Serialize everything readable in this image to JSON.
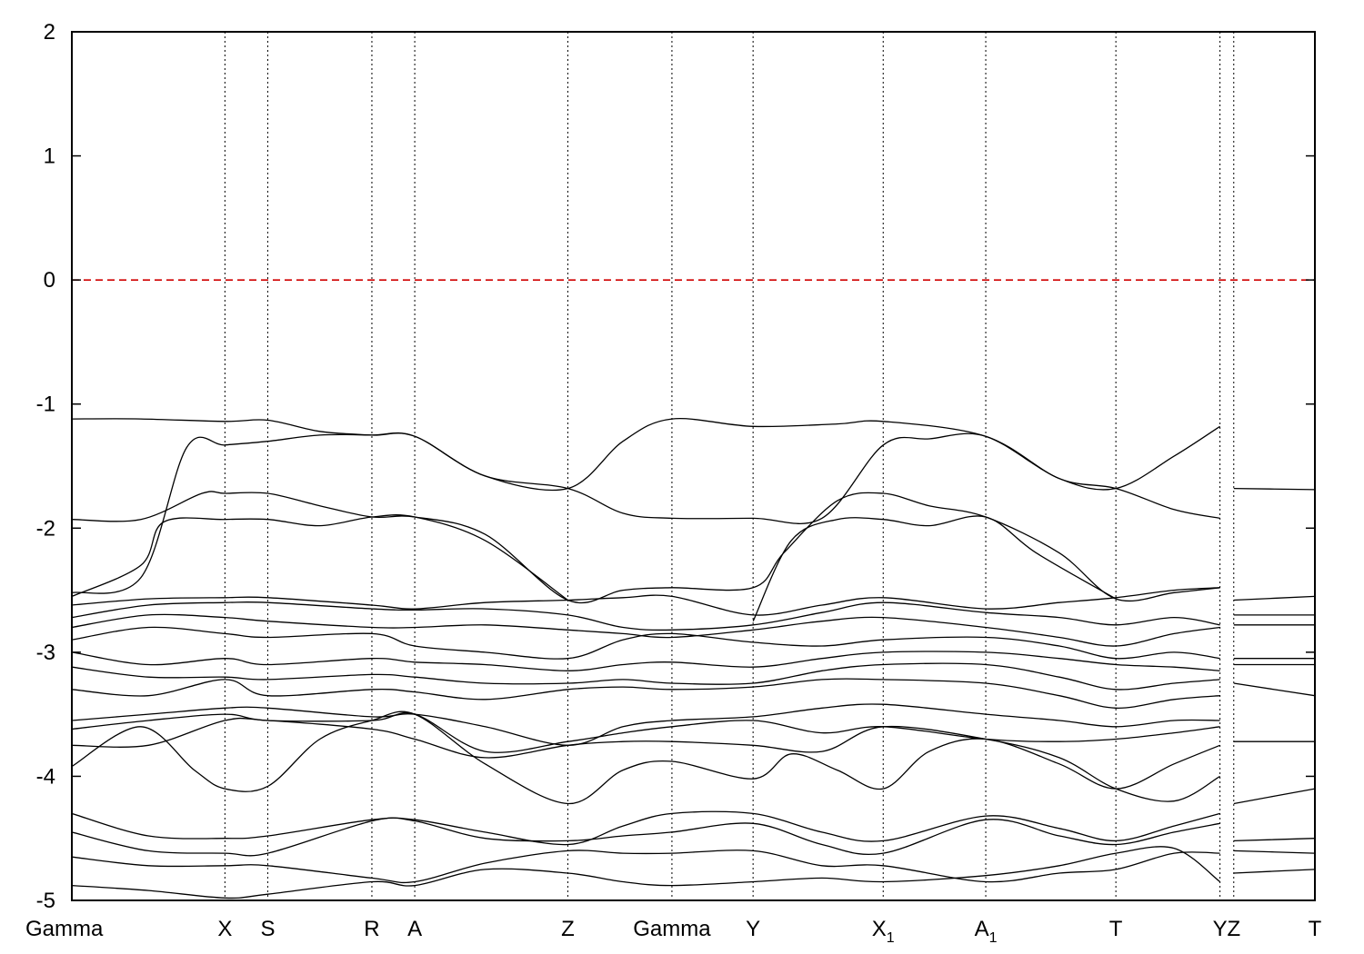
{
  "chart_data": {
    "type": "line",
    "title": "",
    "xlabel": "",
    "ylabel": "",
    "ylim": [
      -5,
      2
    ],
    "yticks": [
      2,
      1,
      0,
      -1,
      -2,
      -3,
      -4,
      -5
    ],
    "ytick_labels": [
      "2",
      "1",
      "0",
      "-1",
      "-2",
      "-3",
      "-4",
      "-5"
    ],
    "grid": false,
    "reference_line": {
      "y": 0,
      "color": "#d00000",
      "style": "dashed"
    },
    "kpath": [
      {
        "label": "Gamma",
        "sub": "",
        "x": 0.0
      },
      {
        "label": "X",
        "sub": "",
        "x": 1.0
      },
      {
        "label": "S",
        "sub": "",
        "x": 1.28
      },
      {
        "label": "R",
        "sub": "",
        "x": 1.96
      },
      {
        "label": "A",
        "sub": "",
        "x": 2.24
      },
      {
        "label": "Z",
        "sub": "",
        "x": 3.24
      },
      {
        "label": "Gamma",
        "sub": "",
        "x": 3.92
      },
      {
        "label": "Y",
        "sub": "",
        "x": 4.45
      },
      {
        "label": "X",
        "sub": "1",
        "x": 5.3
      },
      {
        "label": "A",
        "sub": "1",
        "x": 5.97
      },
      {
        "label": "T",
        "sub": "",
        "x": 6.82
      },
      {
        "label": "Y",
        "sub": "",
        "x": 7.5
      },
      {
        "label": "Z",
        "sub": "",
        "x": 7.59
      },
      {
        "label": "T",
        "sub": "",
        "x": 8.12
      }
    ],
    "xlim": [
      0,
      8.12
    ],
    "series_color": "#000000",
    "series": [
      {
        "x": [
          0,
          0.45,
          1.0,
          1.28,
          1.62,
          1.96,
          2.24,
          2.7,
          3.24,
          3.6,
          3.92,
          4.45,
          5.0,
          5.3,
          5.97,
          6.45,
          6.82,
          7.2,
          7.5
        ],
        "y": [
          -1.12,
          -1.12,
          -1.14,
          -1.13,
          -1.22,
          -1.25,
          -1.26,
          -1.58,
          -1.68,
          -1.3,
          -1.12,
          -1.18,
          -1.16,
          -1.14,
          -1.26,
          -1.6,
          -1.68,
          -1.42,
          -1.18
        ]
      },
      {
        "x": [
          0,
          0.45,
          0.75,
          1.0,
          1.28,
          1.62,
          1.96,
          2.24,
          2.7,
          3.24,
          3.6,
          3.92,
          4.45,
          4.9,
          5.3,
          5.6,
          5.97,
          6.45,
          6.82,
          7.2,
          7.5
        ],
        "y": [
          -2.52,
          -2.4,
          -1.35,
          -1.33,
          -1.3,
          -1.25,
          -1.25,
          -1.26,
          -1.58,
          -1.68,
          -1.88,
          -1.92,
          -1.92,
          -1.92,
          -1.33,
          -1.28,
          -1.26,
          -1.6,
          -1.68,
          -1.85,
          -1.92
        ]
      },
      {
        "x": [
          0,
          0.45,
          0.85,
          1.0,
          1.28,
          1.62,
          1.96,
          2.24,
          2.7,
          3.24,
          3.6,
          3.92,
          4.45,
          4.65,
          5.0,
          5.3,
          5.6,
          5.97,
          6.45,
          6.82,
          7.2,
          7.5
        ],
        "y": [
          -1.93,
          -1.93,
          -1.72,
          -1.72,
          -1.72,
          -1.82,
          -1.91,
          -1.91,
          -2.05,
          -2.58,
          -2.5,
          -2.48,
          -2.48,
          -2.2,
          -1.78,
          -1.72,
          -1.82,
          -1.91,
          -2.2,
          -2.57,
          -2.52,
          -2.48
        ]
      },
      {
        "x": [
          0,
          0.45,
          0.6,
          1.0,
          1.28,
          1.62,
          1.96,
          2.24,
          2.7,
          3.24
        ],
        "y": [
          -2.55,
          -2.3,
          -1.95,
          -1.93,
          -1.93,
          -1.98,
          -1.91,
          -1.91,
          -2.1,
          -2.58
        ]
      },
      {
        "x": [
          4.45,
          4.7,
          5.0,
          5.3,
          5.6,
          5.97,
          6.3,
          6.82
        ],
        "y": [
          -2.75,
          -2.1,
          -1.93,
          -1.93,
          -1.98,
          -1.91,
          -2.2,
          -2.57
        ]
      },
      {
        "x": [
          0,
          0.5,
          1.0,
          1.28,
          1.96,
          2.24,
          2.7,
          3.24,
          3.6,
          3.92,
          4.45,
          4.9,
          5.3,
          5.97,
          6.45,
          6.82,
          7.2,
          7.5
        ],
        "y": [
          -2.62,
          -2.57,
          -2.56,
          -2.56,
          -2.62,
          -2.65,
          -2.6,
          -2.58,
          -2.56,
          -2.55,
          -2.7,
          -2.62,
          -2.56,
          -2.65,
          -2.6,
          -2.56,
          -2.5,
          -2.48
        ]
      },
      {
        "x": [
          0,
          0.5,
          1.0,
          1.28,
          1.96,
          2.24,
          2.7,
          3.24,
          3.6,
          3.92,
          4.45,
          4.9,
          5.3,
          5.97,
          6.45,
          6.82,
          7.2,
          7.5
        ],
        "y": [
          -2.72,
          -2.62,
          -2.6,
          -2.6,
          -2.65,
          -2.66,
          -2.65,
          -2.7,
          -2.8,
          -2.82,
          -2.78,
          -2.68,
          -2.6,
          -2.68,
          -2.72,
          -2.78,
          -2.72,
          -2.78
        ]
      },
      {
        "x": [
          0,
          0.5,
          1.0,
          1.28,
          1.96,
          2.24,
          2.7,
          3.24,
          3.6,
          3.92,
          4.45,
          4.9,
          5.3,
          5.97,
          6.45,
          6.82,
          7.2,
          7.5
        ],
        "y": [
          -2.8,
          -2.7,
          -2.72,
          -2.75,
          -2.8,
          -2.8,
          -2.78,
          -2.82,
          -2.85,
          -2.88,
          -2.82,
          -2.75,
          -2.72,
          -2.8,
          -2.88,
          -2.95,
          -2.85,
          -2.8
        ]
      },
      {
        "x": [
          0,
          0.5,
          1.0,
          1.28,
          1.96,
          2.24,
          2.7,
          3.24,
          3.6,
          3.92,
          4.45,
          4.9,
          5.3,
          5.97,
          6.45,
          6.82,
          7.2,
          7.5
        ],
        "y": [
          -2.9,
          -2.8,
          -2.85,
          -2.88,
          -2.85,
          -2.95,
          -3.0,
          -3.05,
          -2.9,
          -2.85,
          -2.92,
          -2.95,
          -2.9,
          -2.88,
          -2.95,
          -3.05,
          -3.0,
          -3.05
        ]
      },
      {
        "x": [
          0,
          0.5,
          1.0,
          1.28,
          1.96,
          2.24,
          2.7,
          3.24,
          3.6,
          3.92,
          4.45,
          4.9,
          5.3,
          5.97,
          6.45,
          6.82,
          7.2,
          7.5
        ],
        "y": [
          -3.0,
          -3.1,
          -3.05,
          -3.1,
          -3.05,
          -3.08,
          -3.1,
          -3.15,
          -3.1,
          -3.08,
          -3.12,
          -3.05,
          -3.0,
          -3.0,
          -3.05,
          -3.1,
          -3.12,
          -3.15
        ]
      },
      {
        "x": [
          0,
          0.5,
          1.0,
          1.28,
          1.96,
          2.24,
          2.7,
          3.24,
          3.6,
          3.92,
          4.45,
          4.9,
          5.3,
          5.97,
          6.45,
          6.82,
          7.2,
          7.5
        ],
        "y": [
          -3.12,
          -3.2,
          -3.2,
          -3.22,
          -3.18,
          -3.2,
          -3.25,
          -3.25,
          -3.22,
          -3.25,
          -3.25,
          -3.15,
          -3.1,
          -3.1,
          -3.2,
          -3.3,
          -3.25,
          -3.22
        ]
      },
      {
        "x": [
          0,
          0.5,
          1.0,
          1.28,
          1.96,
          2.24,
          2.7,
          3.24,
          3.6,
          3.92,
          4.45,
          4.9,
          5.3,
          5.97,
          6.45,
          6.82,
          7.2,
          7.5
        ],
        "y": [
          -3.3,
          -3.35,
          -3.22,
          -3.35,
          -3.3,
          -3.32,
          -3.38,
          -3.3,
          -3.28,
          -3.3,
          -3.28,
          -3.22,
          -3.22,
          -3.25,
          -3.35,
          -3.45,
          -3.38,
          -3.35
        ]
      },
      {
        "x": [
          0,
          0.5,
          1.0,
          1.28,
          1.96,
          2.24,
          2.7,
          3.24,
          3.6,
          3.92,
          4.45,
          4.9,
          5.3,
          5.97,
          6.45,
          6.82,
          7.2,
          7.5
        ],
        "y": [
          -3.55,
          -3.5,
          -3.45,
          -3.45,
          -3.52,
          -3.5,
          -3.6,
          -3.75,
          -3.6,
          -3.55,
          -3.52,
          -3.45,
          -3.42,
          -3.5,
          -3.55,
          -3.6,
          -3.55,
          -3.55
        ]
      },
      {
        "x": [
          0,
          0.5,
          1.0,
          1.28,
          1.96,
          2.24,
          2.7,
          3.24,
          3.6,
          3.92,
          4.45,
          4.9,
          5.3,
          5.97,
          6.45,
          6.82,
          7.2,
          7.5
        ],
        "y": [
          -3.62,
          -3.55,
          -3.5,
          -3.55,
          -3.55,
          -3.5,
          -3.8,
          -3.72,
          -3.65,
          -3.6,
          -3.55,
          -3.65,
          -3.6,
          -3.7,
          -3.72,
          -3.7,
          -3.65,
          -3.6
        ]
      },
      {
        "x": [
          0,
          0.5,
          1.0,
          1.28,
          1.96,
          2.24,
          2.7,
          3.24,
          3.6,
          3.92,
          4.45,
          4.9,
          5.3,
          5.97,
          6.45,
          6.82,
          7.2,
          7.5
        ],
        "y": [
          -3.75,
          -3.75,
          -3.55,
          -3.55,
          -3.62,
          -3.7,
          -3.85,
          -3.75,
          -3.72,
          -3.72,
          -3.75,
          -3.8,
          -3.6,
          -3.7,
          -3.85,
          -4.1,
          -4.2,
          -4.0
        ]
      },
      {
        "x": [
          0,
          0.45,
          0.8,
          1.0,
          1.28,
          1.62,
          1.96,
          2.24,
          2.7,
          3.24,
          3.6,
          3.92,
          4.45,
          4.7,
          5.0,
          5.3,
          5.6,
          5.97,
          6.45,
          6.82,
          7.2,
          7.5
        ],
        "y": [
          -3.92,
          -3.6,
          -3.95,
          -4.1,
          -4.08,
          -3.7,
          -3.55,
          -3.5,
          -3.9,
          -4.22,
          -3.95,
          -3.88,
          -4.02,
          -3.82,
          -3.95,
          -4.1,
          -3.8,
          -3.7,
          -3.9,
          -4.1,
          -3.9,
          -3.75
        ]
      },
      {
        "x": [
          0,
          0.5,
          1.0,
          1.28,
          1.96,
          2.24,
          2.7,
          3.24,
          3.6,
          3.92,
          4.45,
          4.9,
          5.3,
          5.97,
          6.45,
          6.82,
          7.2,
          7.5
        ],
        "y": [
          -4.3,
          -4.48,
          -4.5,
          -4.48,
          -4.35,
          -4.35,
          -4.45,
          -4.55,
          -4.4,
          -4.3,
          -4.3,
          -4.45,
          -4.52,
          -4.32,
          -4.42,
          -4.52,
          -4.4,
          -4.3
        ]
      },
      {
        "x": [
          0,
          0.5,
          1.0,
          1.28,
          1.96,
          2.24,
          2.7,
          3.24,
          3.6,
          3.92,
          4.45,
          4.9,
          5.3,
          5.97,
          6.45,
          6.82,
          7.2,
          7.5
        ],
        "y": [
          -4.45,
          -4.6,
          -4.62,
          -4.62,
          -4.36,
          -4.36,
          -4.5,
          -4.52,
          -4.48,
          -4.45,
          -4.38,
          -4.55,
          -4.62,
          -4.35,
          -4.48,
          -4.55,
          -4.45,
          -4.38
        ]
      },
      {
        "x": [
          0,
          0.5,
          1.0,
          1.28,
          1.96,
          2.24,
          2.7,
          3.24,
          3.6,
          3.92,
          4.45,
          4.9,
          5.3,
          5.97,
          6.45,
          6.82,
          7.2,
          7.5
        ],
        "y": [
          -4.65,
          -4.72,
          -4.72,
          -4.72,
          -4.82,
          -4.85,
          -4.7,
          -4.6,
          -4.62,
          -4.62,
          -4.6,
          -4.72,
          -4.72,
          -4.85,
          -4.78,
          -4.75,
          -4.62,
          -4.62
        ]
      },
      {
        "x": [
          0,
          0.5,
          1.0,
          1.28,
          1.96,
          2.24,
          2.7,
          3.24,
          3.6,
          3.92,
          4.45,
          4.9,
          5.3,
          5.97,
          6.45,
          6.82,
          7.2,
          7.5
        ],
        "y": [
          -4.88,
          -4.92,
          -4.98,
          -4.95,
          -4.85,
          -4.88,
          -4.75,
          -4.78,
          -4.85,
          -4.88,
          -4.85,
          -4.82,
          -4.85,
          -4.8,
          -4.72,
          -4.62,
          -4.58,
          -4.85
        ]
      },
      {
        "x": [
          7.59,
          8.12
        ],
        "y": [
          -1.68,
          -1.69
        ]
      },
      {
        "x": [
          7.59,
          8.12
        ],
        "y": [
          -2.58,
          -2.55
        ]
      },
      {
        "x": [
          7.59,
          8.12
        ],
        "y": [
          -2.7,
          -2.7
        ]
      },
      {
        "x": [
          7.59,
          8.12
        ],
        "y": [
          -2.78,
          -2.78
        ]
      },
      {
        "x": [
          7.59,
          8.12
        ],
        "y": [
          -3.05,
          -3.05
        ]
      },
      {
        "x": [
          7.59,
          8.12
        ],
        "y": [
          -3.1,
          -3.1
        ]
      },
      {
        "x": [
          7.59,
          8.12
        ],
        "y": [
          -3.25,
          -3.35
        ]
      },
      {
        "x": [
          7.59,
          8.12
        ],
        "y": [
          -3.72,
          -3.72
        ]
      },
      {
        "x": [
          7.59,
          8.12
        ],
        "y": [
          -4.22,
          -4.1
        ]
      },
      {
        "x": [
          7.59,
          8.12
        ],
        "y": [
          -4.52,
          -4.5
        ]
      },
      {
        "x": [
          7.59,
          8.12
        ],
        "y": [
          -4.6,
          -4.62
        ]
      },
      {
        "x": [
          7.59,
          8.12
        ],
        "y": [
          -4.78,
          -4.75
        ]
      }
    ]
  }
}
